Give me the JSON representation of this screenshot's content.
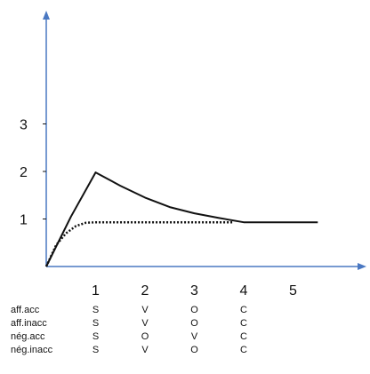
{
  "chart_data": {
    "type": "line",
    "title": "",
    "xlabel": "",
    "ylabel": "",
    "xlim": [
      0,
      6.5
    ],
    "ylim": [
      0,
      4.5
    ],
    "x_ticks": [
      "1",
      "2",
      "3",
      "4",
      "5"
    ],
    "y_ticks": [
      "1",
      "2",
      "3"
    ],
    "grid": false,
    "legend": "none",
    "series": [
      {
        "style": "solid",
        "color": "#111111",
        "x": [
          0,
          0.5,
          1.0,
          1.5,
          2.0,
          2.5,
          3.0,
          3.5,
          4.0,
          4.5,
          5.0,
          5.5
        ],
        "y": [
          0,
          1.05,
          1.98,
          1.7,
          1.45,
          1.25,
          1.12,
          1.02,
          0.93,
          0.93,
          0.93,
          0.93
        ]
      },
      {
        "style": "dotted",
        "color": "#111111",
        "x": [
          0,
          0.2,
          0.4,
          0.6,
          0.8,
          1.0,
          1.5,
          2.0,
          3.0,
          3.8
        ],
        "y": [
          0,
          0.45,
          0.7,
          0.85,
          0.92,
          0.93,
          0.93,
          0.93,
          0.93,
          0.93
        ]
      }
    ]
  },
  "table": {
    "rows": [
      {
        "label": "aff.acc",
        "cells": [
          "S",
          "V",
          "O",
          "C"
        ]
      },
      {
        "label": "aff.inacc",
        "cells": [
          "S",
          "V",
          "O",
          "C"
        ]
      },
      {
        "label": "nég.acc",
        "cells": [
          "S",
          "O",
          "V",
          "C"
        ]
      },
      {
        "label": "nég.inacc",
        "cells": [
          "S",
          "V",
          "O",
          "C"
        ]
      }
    ]
  }
}
